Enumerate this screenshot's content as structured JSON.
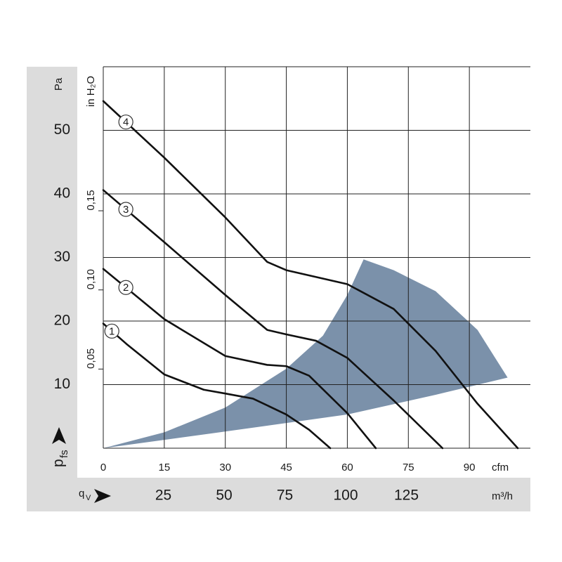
{
  "chart_data": {
    "type": "line",
    "x_label": "cfm",
    "y_label": "Pa",
    "y2_label": "in H₂O",
    "x2_label": "m³/h",
    "y_symbol": {
      "main": "p",
      "sub": "fs"
    },
    "x_symbol": {
      "main": "q",
      "sub": "V"
    },
    "xlim": [
      0,
      105
    ],
    "xticks": [
      0,
      15,
      30,
      45,
      60,
      75,
      90
    ],
    "ylim": [
      0,
      60
    ],
    "yticks": [
      10,
      20,
      30,
      40,
      50
    ],
    "y2lim": [
      0,
      0.241
    ],
    "y2ticks": [
      {
        "value": 0.05,
        "label": "0,05"
      },
      {
        "value": 0.1,
        "label": "0,10"
      },
      {
        "value": 0.15,
        "label": "0,15"
      }
    ],
    "x2lim": [
      0,
      176
    ],
    "x2ticks": [
      25,
      50,
      75,
      100,
      125
    ],
    "grid": true,
    "shaded_region": {
      "color": "#7b91aa",
      "x": [
        0,
        26.4,
        60,
        81.7,
        99.4,
        92,
        81.7,
        71.4,
        64,
        60,
        54,
        45,
        30,
        15
      ],
      "values": [
        0,
        2.3,
        5.3,
        8.4,
        11.1,
        18.6,
        24.7,
        28,
        29.7,
        24.1,
        17.7,
        12.5,
        6.4,
        2.5
      ]
    },
    "series": [
      {
        "name": "1",
        "color": "#111111",
        "x": [
          0,
          5.7,
          15,
          24.7,
          30,
          36.8,
          45,
          50.6,
          55.8
        ],
        "values": [
          19.6,
          16.4,
          11.6,
          9.2,
          8.6,
          7.8,
          5.3,
          2.9,
          0
        ]
      },
      {
        "name": "2",
        "color": "#111111",
        "x": [
          0,
          15,
          30,
          40.3,
          45,
          50.6,
          60,
          67
        ],
        "values": [
          28.2,
          20.3,
          14.5,
          13.1,
          12.9,
          11.4,
          5.5,
          0
        ]
      },
      {
        "name": "3",
        "color": "#111111",
        "x": [
          0,
          15,
          30,
          40.3,
          45,
          52.3,
          60,
          71.4,
          83.4
        ],
        "values": [
          40.6,
          32.4,
          24.1,
          18.6,
          17.9,
          16.9,
          14.2,
          7.5,
          0
        ]
      },
      {
        "name": "4",
        "color": "#111111",
        "x": [
          0,
          15,
          30,
          40.3,
          45,
          60,
          71.4,
          81.7,
          92,
          101.9
        ],
        "values": [
          54.6,
          45.7,
          36.3,
          29.3,
          28,
          25.8,
          21.9,
          15.3,
          7,
          0
        ]
      }
    ]
  }
}
